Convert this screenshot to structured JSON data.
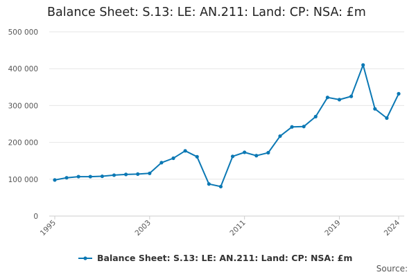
{
  "chart_data": {
    "type": "line",
    "title": "Balance Sheet: S.13: LE: AN.211: Land: CP: NSA: £m",
    "xlabel": "",
    "ylabel": "",
    "ylim": [
      0,
      500000
    ],
    "yticks": [
      0,
      100000,
      200000,
      300000,
      400000,
      500000
    ],
    "ytick_labels": [
      "0",
      "100 000",
      "200 000",
      "300 000",
      "400 000",
      "500 000"
    ],
    "xticks": [
      1995,
      2003,
      2011,
      2019,
      2024
    ],
    "xlim": [
      1995,
      2024
    ],
    "grid": true,
    "legend_position": "bottom",
    "series": [
      {
        "name": "Balance Sheet: S.13: LE: AN.211: Land: CP: NSA: £m",
        "color": "#0b78b4",
        "x": [
          1995,
          1996,
          1997,
          1998,
          1999,
          2000,
          2001,
          2002,
          2003,
          2004,
          2005,
          2006,
          2007,
          2008,
          2009,
          2010,
          2011,
          2012,
          2013,
          2014,
          2015,
          2016,
          2017,
          2018,
          2019,
          2020,
          2021,
          2022,
          2023,
          2024
        ],
        "values": [
          98000,
          104000,
          107000,
          107000,
          108000,
          111000,
          113000,
          114000,
          116000,
          145000,
          157000,
          177000,
          161000,
          87000,
          80000,
          162000,
          173000,
          164000,
          172000,
          217000,
          242000,
          243000,
          270000,
          322000,
          316000,
          325000,
          410000,
          291000,
          266000,
          332000
        ]
      }
    ]
  },
  "footer": {
    "source": "Source:"
  }
}
